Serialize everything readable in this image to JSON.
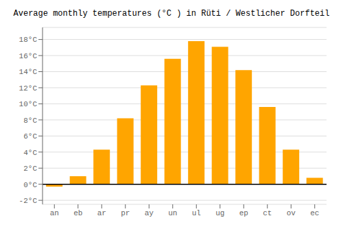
{
  "chart_data": {
    "type": "bar",
    "title": "Average monthly temperatures (°C ) in Rüti / Westlicher Dorfteil",
    "categories": [
      "an",
      "eb",
      "ar",
      "pr",
      "ay",
      "un",
      "ul",
      "ug",
      "ep",
      "ct",
      "ov",
      "ec"
    ],
    "values": [
      -0.3,
      1.0,
      4.3,
      8.2,
      12.3,
      15.6,
      17.8,
      17.1,
      14.2,
      9.6,
      4.3,
      0.8
    ],
    "color": "#FFA500",
    "ylim": [
      -2.5,
      19.5
    ],
    "yticks": [
      {
        "value": -2,
        "label": "-2°C"
      },
      {
        "value": 0,
        "label": "0°C"
      },
      {
        "value": 2,
        "label": "2°C"
      },
      {
        "value": 4,
        "label": "4°C"
      },
      {
        "value": 6,
        "label": "6°C"
      },
      {
        "value": 8,
        "label": "8°C"
      },
      {
        "value": 10,
        "label": "10°C"
      },
      {
        "value": 12,
        "label": "12°C"
      },
      {
        "value": 14,
        "label": "14°C"
      },
      {
        "value": 16,
        "label": "16°C"
      },
      {
        "value": 18,
        "label": "18°C"
      }
    ],
    "grid": true
  }
}
